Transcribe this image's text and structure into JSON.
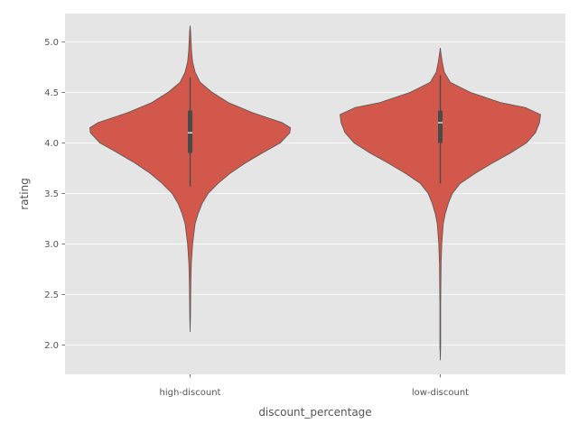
{
  "chart_data": {
    "type": "violin",
    "xlabel": "discount_percentage",
    "ylabel": "rating",
    "categories": [
      "high-discount",
      "low-discount"
    ],
    "ylim": [
      1.71,
      5.28
    ],
    "yticks": [
      "2.0",
      "2.5",
      "3.0",
      "3.5",
      "4.0",
      "4.5",
      "5.0"
    ],
    "grid": true,
    "background_color": "#e5e5e5",
    "grid_color": "#ffffff",
    "violin_fill": "#d1584a",
    "violin_stroke": "#555555",
    "series": [
      {
        "category": "high-discount",
        "min": 2.13,
        "max": 5.16,
        "q1": 3.9,
        "median": 4.1,
        "q3": 4.32,
        "whisker_low": 3.57,
        "whisker_high": 4.65,
        "density_profile": [
          [
            2.13,
            0.0
          ],
          [
            2.3,
            0.004
          ],
          [
            2.6,
            0.007
          ],
          [
            2.8,
            0.012
          ],
          [
            3.0,
            0.025
          ],
          [
            3.2,
            0.05
          ],
          [
            3.3,
            0.08
          ],
          [
            3.4,
            0.12
          ],
          [
            3.5,
            0.18
          ],
          [
            3.6,
            0.28
          ],
          [
            3.7,
            0.4
          ],
          [
            3.8,
            0.55
          ],
          [
            3.9,
            0.72
          ],
          [
            4.0,
            0.9
          ],
          [
            4.1,
            0.995
          ],
          [
            4.15,
            1.0
          ],
          [
            4.2,
            0.92
          ],
          [
            4.3,
            0.62
          ],
          [
            4.4,
            0.38
          ],
          [
            4.5,
            0.22
          ],
          [
            4.6,
            0.1
          ],
          [
            4.7,
            0.05
          ],
          [
            4.8,
            0.025
          ],
          [
            4.9,
            0.015
          ],
          [
            5.0,
            0.01
          ],
          [
            5.1,
            0.005
          ],
          [
            5.16,
            0.0
          ]
        ]
      },
      {
        "category": "low-discount",
        "min": 1.85,
        "max": 4.94,
        "q1": 4.0,
        "median": 4.2,
        "q3": 4.32,
        "whisker_low": 3.6,
        "whisker_high": 4.67,
        "density_profile": [
          [
            1.85,
            0.0
          ],
          [
            2.0,
            0.004
          ],
          [
            2.4,
            0.004
          ],
          [
            2.8,
            0.008
          ],
          [
            3.0,
            0.015
          ],
          [
            3.2,
            0.03
          ],
          [
            3.3,
            0.05
          ],
          [
            3.4,
            0.08
          ],
          [
            3.5,
            0.12
          ],
          [
            3.6,
            0.2
          ],
          [
            3.7,
            0.35
          ],
          [
            3.8,
            0.52
          ],
          [
            3.9,
            0.7
          ],
          [
            4.0,
            0.86
          ],
          [
            4.1,
            0.95
          ],
          [
            4.2,
            0.99
          ],
          [
            4.28,
            1.0
          ],
          [
            4.35,
            0.85
          ],
          [
            4.4,
            0.6
          ],
          [
            4.5,
            0.3
          ],
          [
            4.6,
            0.1
          ],
          [
            4.7,
            0.04
          ],
          [
            4.8,
            0.02
          ],
          [
            4.9,
            0.005
          ],
          [
            4.94,
            0.0
          ]
        ]
      }
    ]
  }
}
